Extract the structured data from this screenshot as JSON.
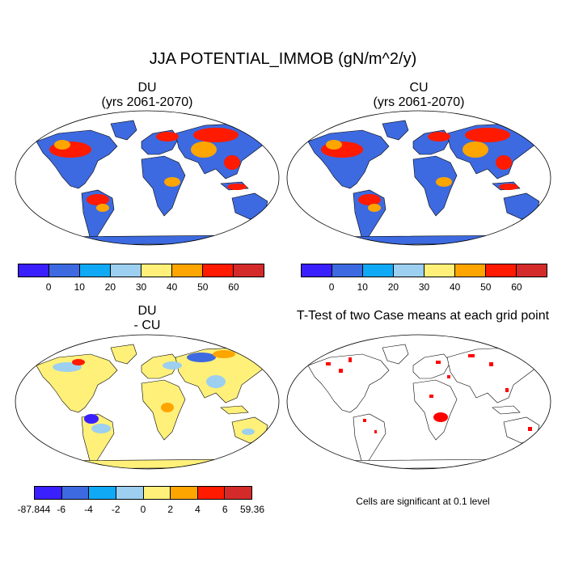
{
  "main_title": "JJA POTENTIAL_IMMOB (gN/m^2/y)",
  "panels": {
    "du": {
      "title_line1": "DU",
      "title_line2": "(yrs 2061-2070)"
    },
    "cu": {
      "title_line1": "CU",
      "title_line2": "(yrs 2061-2070)"
    },
    "diff": {
      "title_line1": "DU",
      "title_line2": "- CU"
    },
    "ttest": {
      "title": "T-Test of two Case means at each grid point",
      "note": "Cells are significant at 0.1 level"
    }
  },
  "colorbars": {
    "absolute": {
      "colors": [
        "#3a1fff",
        "#3d6ae0",
        "#0fa9f5",
        "#9ccff0",
        "#fff07a",
        "#ffa500",
        "#ff1a00",
        "#d42a2a"
      ],
      "labels": [
        "0",
        "10",
        "20",
        "30",
        "40",
        "50",
        "60"
      ]
    },
    "difference": {
      "colors": [
        "#3a1fff",
        "#3d6ae0",
        "#0fa9f5",
        "#9ccff0",
        "#fff07a",
        "#ffa500",
        "#ff1a00",
        "#d42a2a"
      ],
      "labels": [
        "-87.844",
        "-6",
        "-4",
        "-2",
        "0",
        "2",
        "4",
        "6",
        "59.36"
      ]
    }
  },
  "map_colors": {
    "ocean": "#ffffff",
    "land_low": "#3d6ae0",
    "diff_land": "#fff07a",
    "significant": "#ff0000"
  }
}
